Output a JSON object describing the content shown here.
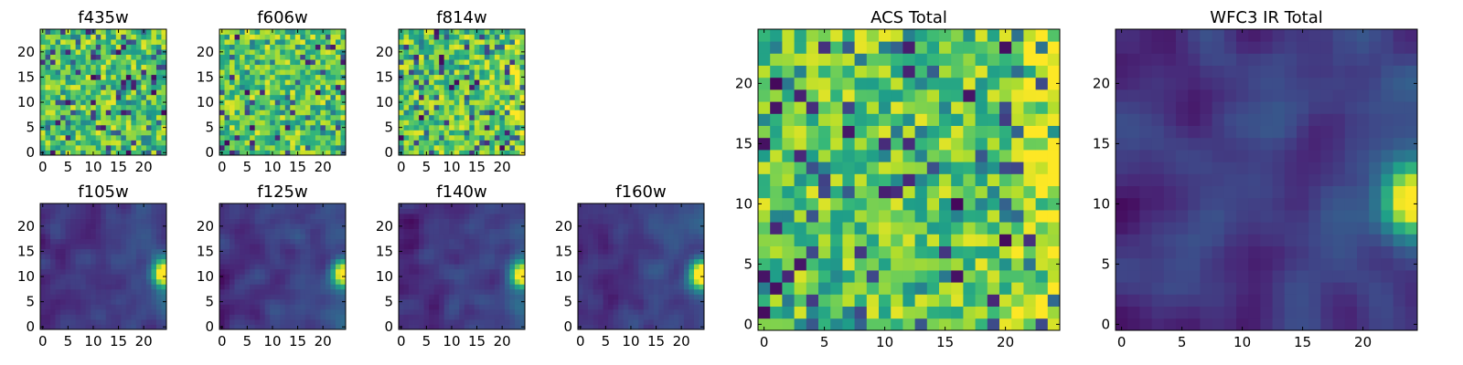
{
  "chart_data": [
    {
      "type": "heatmap",
      "title": "f435w",
      "shape": [
        25,
        25
      ],
      "xticks": [
        0,
        5,
        10,
        15,
        20
      ],
      "yticks": [
        0,
        5,
        10,
        15,
        20
      ],
      "colormap": "viridis",
      "pattern": "noise",
      "hotspot": "none"
    },
    {
      "type": "heatmap",
      "title": "f606w",
      "shape": [
        25,
        25
      ],
      "xticks": [
        0,
        5,
        10,
        15,
        20
      ],
      "yticks": [
        0,
        5,
        10,
        15,
        20
      ],
      "colormap": "viridis",
      "pattern": "noise",
      "hotspot": "none"
    },
    {
      "type": "heatmap",
      "title": "f814w",
      "shape": [
        25,
        25
      ],
      "xticks": [
        0,
        5,
        10,
        15,
        20
      ],
      "yticks": [
        0,
        5,
        10,
        15,
        20
      ],
      "colormap": "viridis",
      "pattern": "noise",
      "hotspot": "right-edge"
    },
    {
      "type": "heatmap",
      "title": "f105w",
      "shape": [
        25,
        25
      ],
      "xticks": [
        0,
        5,
        10,
        15,
        20
      ],
      "yticks": [
        0,
        5,
        10,
        15,
        20
      ],
      "colormap": "viridis",
      "pattern": "smooth",
      "hotspot": "right-edge"
    },
    {
      "type": "heatmap",
      "title": "f125w",
      "shape": [
        25,
        25
      ],
      "xticks": [
        0,
        5,
        10,
        15,
        20
      ],
      "yticks": [
        0,
        5,
        10,
        15,
        20
      ],
      "colormap": "viridis",
      "pattern": "smooth",
      "hotspot": "right-edge"
    },
    {
      "type": "heatmap",
      "title": "f140w",
      "shape": [
        25,
        25
      ],
      "xticks": [
        0,
        5,
        10,
        15,
        20
      ],
      "yticks": [
        0,
        5,
        10,
        15,
        20
      ],
      "colormap": "viridis",
      "pattern": "smooth",
      "hotspot": "right-edge"
    },
    {
      "type": "heatmap",
      "title": "f160w",
      "shape": [
        25,
        25
      ],
      "xticks": [
        0,
        5,
        10,
        15,
        20
      ],
      "yticks": [
        0,
        5,
        10,
        15,
        20
      ],
      "colormap": "viridis",
      "pattern": "smooth",
      "hotspot": "right-edge"
    },
    {
      "type": "heatmap",
      "title": "ACS Total",
      "shape": [
        25,
        25
      ],
      "xticks": [
        0,
        5,
        10,
        15,
        20
      ],
      "yticks": [
        0,
        5,
        10,
        15,
        20
      ],
      "colormap": "viridis",
      "pattern": "noise",
      "hotspot": "right-edge"
    },
    {
      "type": "heatmap",
      "title": "WFC3 IR Total",
      "shape": [
        25,
        25
      ],
      "xticks": [
        0,
        5,
        10,
        15,
        20
      ],
      "yticks": [
        0,
        5,
        10,
        15,
        20
      ],
      "colormap": "viridis",
      "pattern": "smooth",
      "hotspot": "right-edge"
    }
  ]
}
